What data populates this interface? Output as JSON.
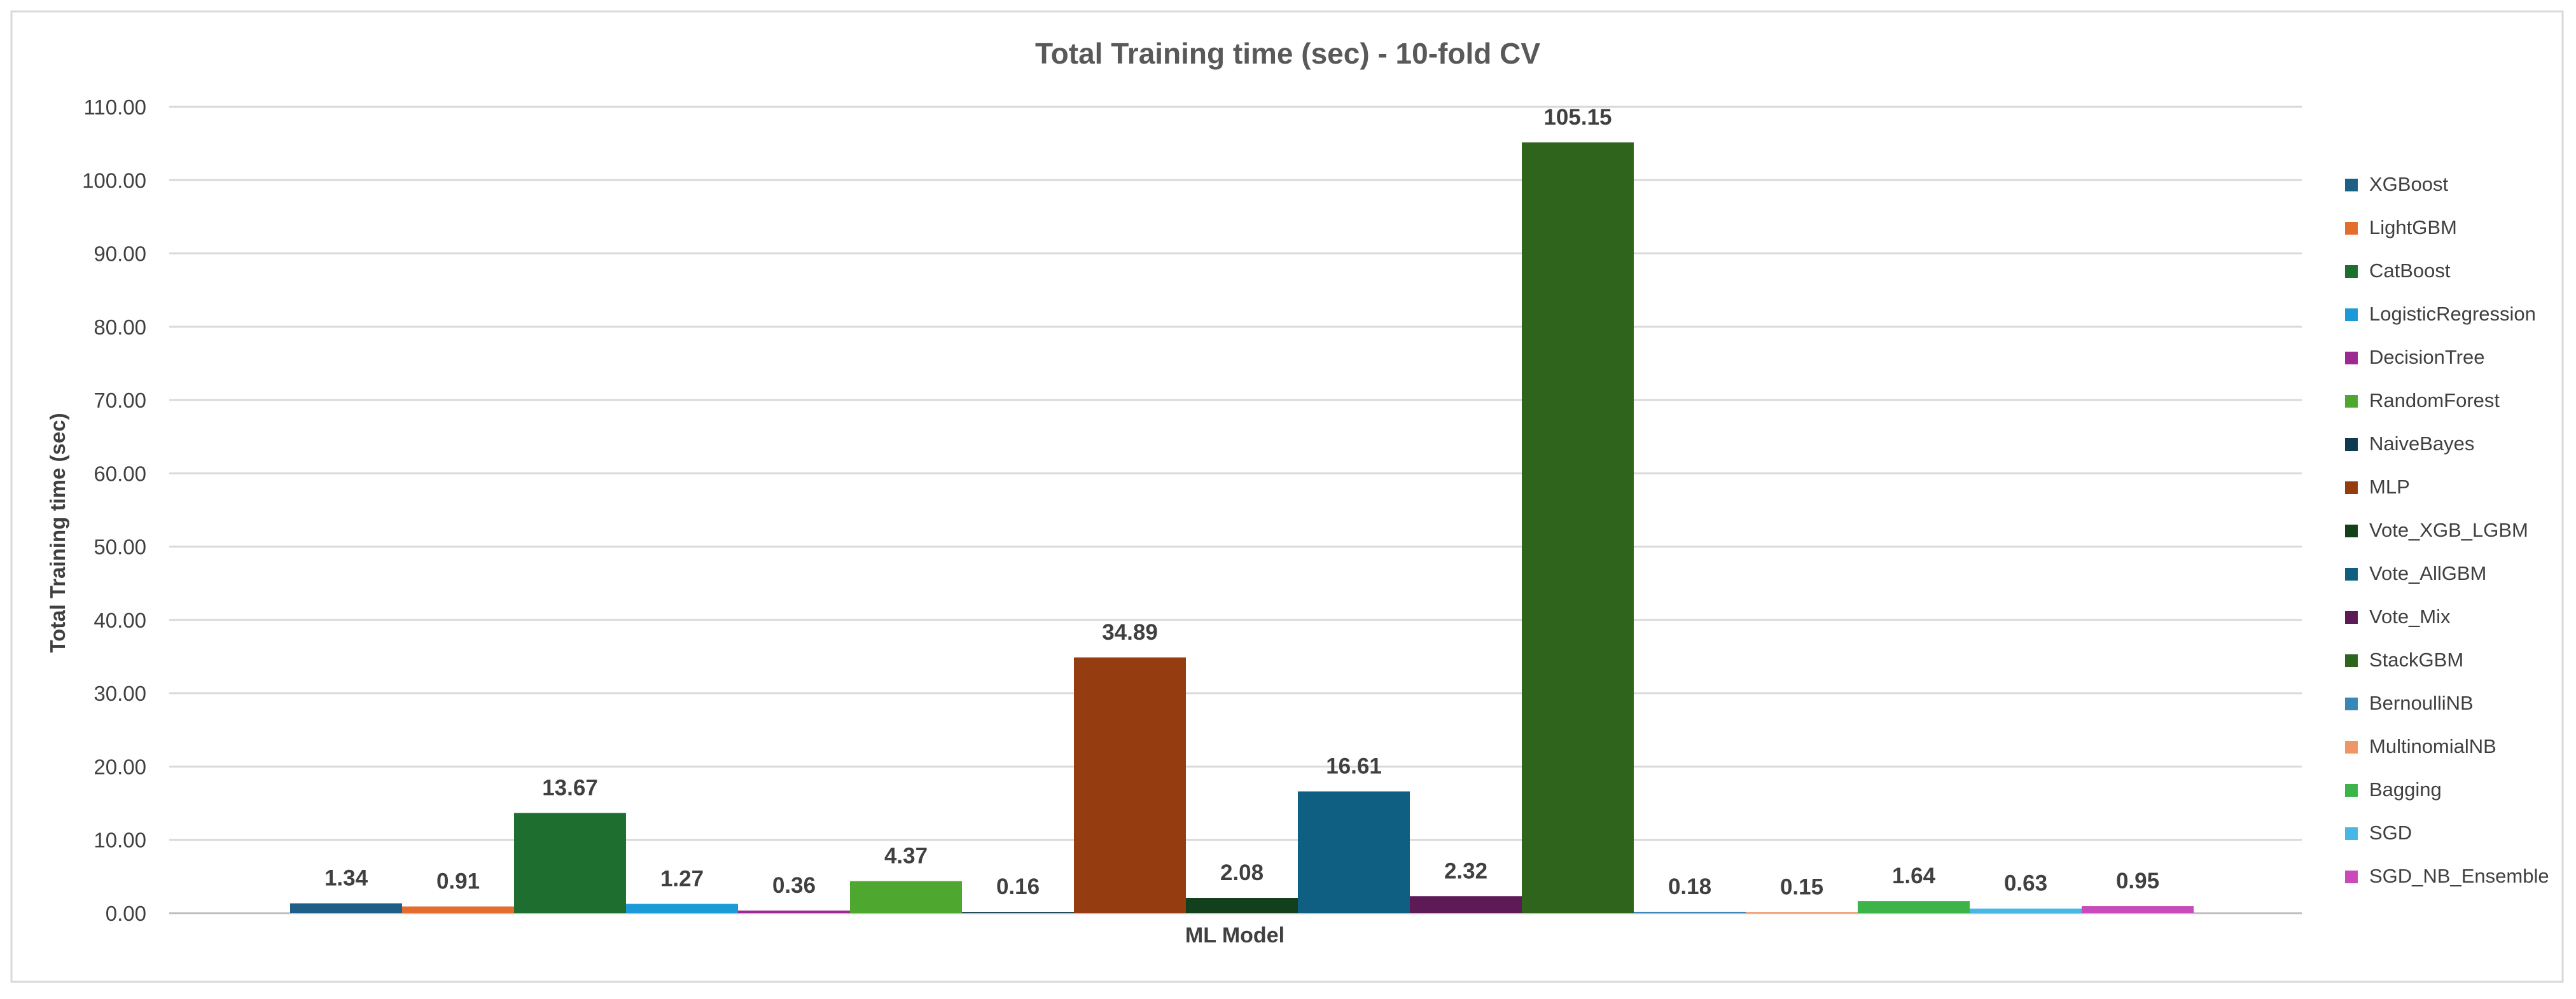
{
  "chart_data": {
    "type": "bar",
    "title": "Total Training time (sec) - 10-fold CV",
    "xlabel": "ML Model",
    "ylabel": "Total Training time (sec)",
    "ylim": [
      0,
      110
    ],
    "y_ticks": [
      "0.00",
      "10.00",
      "20.00",
      "30.00",
      "40.00",
      "50.00",
      "60.00",
      "70.00",
      "80.00",
      "90.00",
      "100.00",
      "110.00"
    ],
    "grid": true,
    "legend_position": "right",
    "series": [
      {
        "name": "XGBoost",
        "value": 1.34,
        "label": "1.34",
        "color": "#1d5f86"
      },
      {
        "name": "LightGBM",
        "value": 0.91,
        "label": "0.91",
        "color": "#e46c2d"
      },
      {
        "name": "CatBoost",
        "value": 13.67,
        "label": "13.67",
        "color": "#1e6e2f"
      },
      {
        "name": "LogisticRegression",
        "value": 1.27,
        "label": "1.27",
        "color": "#1a9ad6"
      },
      {
        "name": "DecisionTree",
        "value": 0.36,
        "label": "0.36",
        "color": "#9c2a91"
      },
      {
        "name": "RandomForest",
        "value": 4.37,
        "label": "4.37",
        "color": "#4ea72e"
      },
      {
        "name": "NaiveBayes",
        "value": 0.16,
        "label": "0.16",
        "color": "#0f3a4f"
      },
      {
        "name": "MLP",
        "value": 34.89,
        "label": "34.89",
        "color": "#963c11"
      },
      {
        "name": "Vote_XGB_LGBM",
        "value": 2.08,
        "label": "2.08",
        "color": "#123f1c"
      },
      {
        "name": "Vote_AllGBM",
        "value": 16.61,
        "label": "16.61",
        "color": "#0f5f83"
      },
      {
        "name": "Vote_Mix",
        "value": 2.32,
        "label": "2.32",
        "color": "#5d1a57"
      },
      {
        "name": "StackGBM",
        "value": 105.15,
        "label": "105.15",
        "color": "#2e641b"
      },
      {
        "name": "BernoulliNB",
        "value": 0.18,
        "label": "0.18",
        "color": "#3a87b5"
      },
      {
        "name": "MultinomialNB",
        "value": 0.15,
        "label": "0.15",
        "color": "#ef9664"
      },
      {
        "name": "Bagging",
        "value": 1.64,
        "label": "1.64",
        "color": "#3cb44a"
      },
      {
        "name": "SGD",
        "value": 0.63,
        "label": "0.63",
        "color": "#47b7e4"
      },
      {
        "name": "SGD_NB_Ensemble",
        "value": 0.95,
        "label": "0.95",
        "color": "#c94ab9"
      }
    ]
  }
}
